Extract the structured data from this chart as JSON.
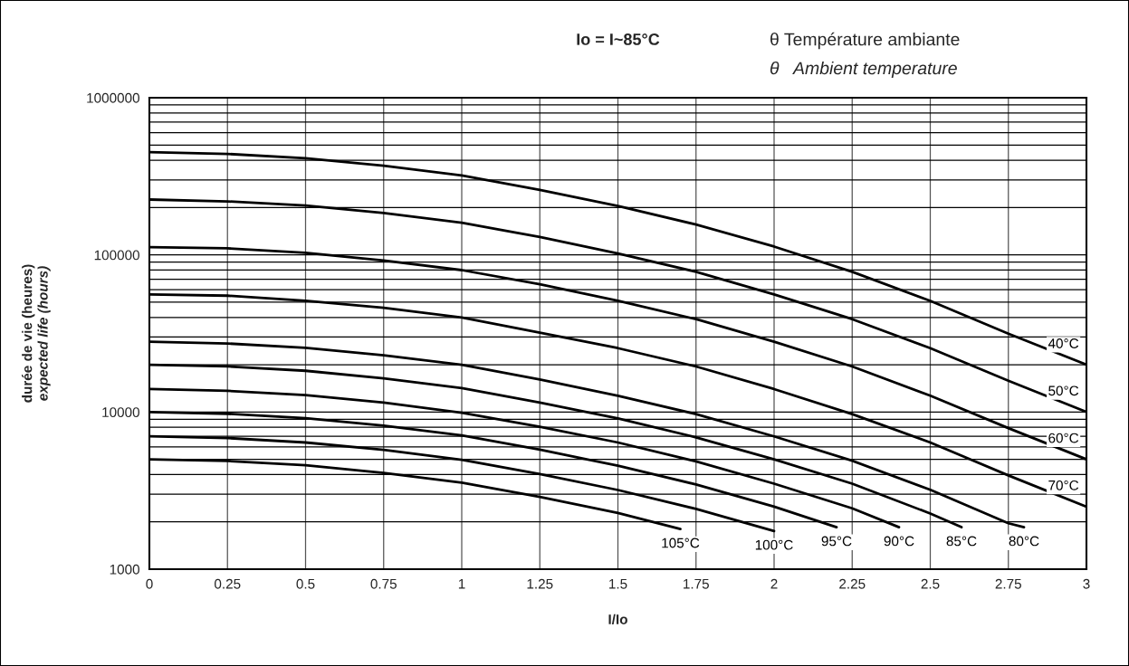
{
  "chart_data": {
    "type": "line",
    "title": "Io = I~85°C",
    "xlabel": "I/Io",
    "ylabel": "durée de vie (heures)\nexpected life (hours)",
    "annotations": [
      "θ Température ambiante",
      "θ   Ambient temperature"
    ],
    "x": [
      0,
      0.25,
      0.5,
      0.75,
      1,
      1.25,
      1.5,
      1.75,
      2,
      2.25,
      2.5,
      2.75,
      3
    ],
    "series": [
      {
        "name": "40°C",
        "color": "#000000",
        "values": [
          450000,
          439000,
          412000,
          369000,
          320000,
          259000,
          205000,
          156000,
          113000,
          78000,
          51000,
          31500,
          20000
        ]
      },
      {
        "name": "50°C",
        "color": "#000000",
        "values": [
          225000,
          219000,
          206000,
          185000,
          160000,
          130000,
          102000,
          78000,
          56000,
          39000,
          25500,
          15800,
          10000
        ]
      },
      {
        "name": "60°C",
        "color": "#000000",
        "values": [
          112000,
          110000,
          103000,
          92000,
          80000,
          65000,
          51000,
          39000,
          28000,
          19500,
          12700,
          7900,
          5000
        ]
      },
      {
        "name": "70°C",
        "color": "#000000",
        "values": [
          56000,
          55000,
          51000,
          46000,
          40000,
          32000,
          25500,
          19500,
          14000,
          9700,
          6400,
          3950,
          2500
        ]
      },
      {
        "name": "80°C",
        "color": "#000000",
        "x": [
          0,
          0.25,
          0.5,
          0.75,
          1,
          1.25,
          1.5,
          1.75,
          2,
          2.25,
          2.5,
          2.75,
          2.8
        ],
        "values": [
          28000,
          27300,
          25600,
          23000,
          20000,
          16100,
          12700,
          9700,
          7000,
          4900,
          3200,
          1960,
          1850
        ]
      },
      {
        "name": "85°C",
        "color": "#000000",
        "x": [
          0,
          0.25,
          0.5,
          0.75,
          1,
          1.25,
          1.5,
          1.75,
          2,
          2.25,
          2.5,
          2.6
        ],
        "values": [
          20000,
          19500,
          18300,
          16400,
          14200,
          11500,
          9100,
          6900,
          5000,
          3500,
          2260,
          1850
        ]
      },
      {
        "name": "90°C",
        "color": "#000000",
        "x": [
          0,
          0.25,
          0.5,
          0.75,
          1,
          1.25,
          1.5,
          1.75,
          2,
          2.25,
          2.4
        ],
        "values": [
          14000,
          13650,
          12800,
          11500,
          9900,
          8050,
          6400,
          4850,
          3500,
          2440,
          1850
        ]
      },
      {
        "name": "95°C",
        "color": "#000000",
        "x": [
          0,
          0.25,
          0.5,
          0.75,
          1,
          1.25,
          1.5,
          1.75,
          2,
          2.2
        ],
        "values": [
          10000,
          9750,
          9150,
          8200,
          7100,
          5760,
          4550,
          3460,
          2500,
          1850
        ]
      },
      {
        "name": "100°C",
        "color": "#000000",
        "x": [
          0,
          0.25,
          0.5,
          0.75,
          1,
          1.25,
          1.5,
          1.75,
          2
        ],
        "values": [
          7000,
          6830,
          6400,
          5740,
          4970,
          4030,
          3190,
          2420,
          1750
        ]
      },
      {
        "name": "105°C",
        "color": "#000000",
        "x": [
          0,
          0.25,
          0.5,
          0.75,
          1,
          1.25,
          1.5,
          1.7
        ],
        "values": [
          5000,
          4880,
          4580,
          4100,
          3550,
          2880,
          2280,
          1800
        ]
      }
    ],
    "log": "y",
    "xlim": [
      0,
      3
    ],
    "ylim": [
      1000,
      1000000
    ],
    "xticks": [
      0,
      0.25,
      0.5,
      0.75,
      1,
      1.25,
      1.5,
      1.75,
      2,
      2.25,
      2.5,
      2.75,
      3
    ],
    "yticks": [
      1000,
      10000,
      100000,
      1000000
    ],
    "grid": true,
    "marker": "none",
    "line_style": "solid"
  }
}
